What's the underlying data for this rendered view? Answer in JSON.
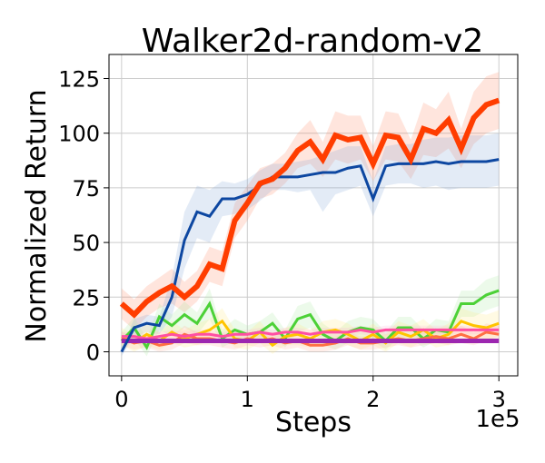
{
  "chart_data": {
    "type": "line",
    "title": "Walker2d-random-v2",
    "xlabel": "Steps",
    "ylabel": "Normalized Return",
    "x_multiplier_label": "1e5",
    "xlim": [
      -0.1,
      3.15
    ],
    "ylim": [
      -11,
      136
    ],
    "x_ticks": [
      0,
      1,
      2,
      3
    ],
    "x_tick_labels": [
      "0",
      "1",
      "2",
      "3"
    ],
    "y_ticks": [
      0,
      25,
      50,
      75,
      100,
      125
    ],
    "y_tick_labels": [
      "0",
      "25",
      "50",
      "75",
      "100",
      "125"
    ],
    "grid": true,
    "legend": "none",
    "x": [
      0,
      0.1,
      0.2,
      0.3,
      0.4,
      0.5,
      0.6,
      0.7,
      0.8,
      0.9,
      1.0,
      1.1,
      1.2,
      1.3,
      1.4,
      1.5,
      1.6,
      1.7,
      1.8,
      1.9,
      2.0,
      2.1,
      2.2,
      2.3,
      2.4,
      2.5,
      2.6,
      2.7,
      2.8,
      2.9,
      3.0
    ],
    "series": [
      {
        "color": "#ff3d00",
        "width": 6,
        "band_color": "#ff8a65",
        "values": [
          22,
          17,
          23,
          27,
          30,
          25,
          30,
          40,
          38,
          60,
          68,
          77,
          79,
          84,
          92,
          96,
          88,
          99,
          97,
          98,
          86,
          99,
          98,
          88,
          102,
          100,
          106,
          93,
          107,
          113,
          115
        ],
        "lower": [
          15,
          10,
          16,
          20,
          22,
          18,
          23,
          32,
          30,
          52,
          60,
          70,
          72,
          77,
          84,
          86,
          80,
          88,
          86,
          88,
          78,
          88,
          87,
          79,
          90,
          89,
          93,
          84,
          95,
          100,
          102
        ],
        "upper": [
          29,
          24,
          30,
          34,
          38,
          32,
          37,
          48,
          46,
          68,
          76,
          84,
          86,
          91,
          100,
          106,
          96,
          110,
          108,
          108,
          94,
          110,
          109,
          97,
          114,
          111,
          119,
          102,
          119,
          126,
          128
        ]
      },
      {
        "color": "#0d47a1",
        "width": 3,
        "band_color": "#7fa3d8",
        "values": [
          0,
          11,
          13,
          12,
          25,
          51,
          64,
          62,
          70,
          70,
          72,
          76,
          80,
          80,
          80,
          81,
          82,
          82,
          84,
          85,
          70,
          85,
          86,
          86,
          86,
          87,
          86,
          87,
          87,
          87,
          88
        ],
        "lower": [
          -2,
          7,
          9,
          8,
          16,
          38,
          52,
          50,
          62,
          63,
          65,
          69,
          74,
          74,
          73,
          74,
          64,
          72,
          74,
          76,
          62,
          76,
          77,
          77,
          75,
          76,
          74,
          75,
          75,
          75,
          76
        ],
        "upper": [
          2,
          15,
          17,
          16,
          34,
          64,
          76,
          74,
          78,
          77,
          79,
          83,
          86,
          86,
          87,
          88,
          90,
          92,
          94,
          94,
          78,
          94,
          95,
          95,
          97,
          98,
          98,
          99,
          99,
          99,
          100
        ]
      },
      {
        "color": "#4cd137",
        "width": 3,
        "band_color": "#a8e6a0",
        "values": [
          5,
          11,
          2,
          16,
          12,
          17,
          13,
          22,
          6,
          10,
          8,
          9,
          13,
          6,
          15,
          17,
          8,
          5,
          9,
          11,
          10,
          5,
          11,
          11,
          6,
          10,
          9,
          22,
          22,
          26,
          28
        ],
        "lower": [
          1,
          6,
          -2,
          10,
          7,
          11,
          8,
          15,
          2,
          5,
          4,
          4,
          8,
          2,
          9,
          11,
          3,
          1,
          4,
          6,
          5,
          1,
          6,
          6,
          2,
          5,
          4,
          16,
          16,
          19,
          21
        ],
        "upper": [
          9,
          16,
          6,
          22,
          17,
          23,
          18,
          29,
          10,
          15,
          12,
          14,
          18,
          10,
          21,
          23,
          13,
          9,
          14,
          16,
          15,
          9,
          16,
          16,
          10,
          15,
          14,
          28,
          28,
          33,
          35
        ]
      },
      {
        "color": "#ffc400",
        "width": 3,
        "band_color": "#ffe680",
        "values": [
          7,
          4,
          8,
          5,
          9,
          6,
          8,
          10,
          14,
          6,
          5,
          9,
          3,
          7,
          8,
          6,
          9,
          10,
          8,
          5,
          8,
          4,
          9,
          7,
          10,
          6,
          8,
          14,
          12,
          11,
          13
        ],
        "lower": [
          3,
          0,
          3,
          1,
          4,
          2,
          3,
          5,
          8,
          2,
          1,
          4,
          -1,
          3,
          3,
          2,
          4,
          5,
          3,
          1,
          3,
          0,
          4,
          2,
          5,
          2,
          3,
          8,
          6,
          5,
          7
        ],
        "upper": [
          11,
          8,
          13,
          9,
          14,
          10,
          13,
          15,
          20,
          10,
          9,
          14,
          7,
          11,
          13,
          10,
          14,
          15,
          13,
          9,
          13,
          8,
          14,
          12,
          15,
          10,
          13,
          20,
          18,
          17,
          19
        ]
      },
      {
        "color": "#ff7043",
        "width": 3,
        "band_color": "#ffb199",
        "values": [
          6,
          4,
          5,
          3,
          4,
          8,
          6,
          6,
          5,
          4,
          6,
          5,
          6,
          4,
          5,
          3,
          3,
          4,
          6,
          4,
          4,
          5,
          6,
          5,
          6,
          7,
          6,
          8,
          6,
          9,
          8
        ],
        "lower": [
          3,
          1,
          2,
          0,
          1,
          4,
          3,
          3,
          2,
          1,
          3,
          2,
          3,
          1,
          2,
          0,
          0,
          1,
          3,
          1,
          1,
          2,
          3,
          2,
          3,
          4,
          3,
          4,
          3,
          5,
          4
        ],
        "upper": [
          9,
          7,
          8,
          6,
          7,
          12,
          9,
          9,
          8,
          7,
          9,
          8,
          9,
          7,
          8,
          6,
          6,
          7,
          9,
          7,
          7,
          8,
          9,
          8,
          9,
          10,
          9,
          12,
          9,
          13,
          12
        ]
      },
      {
        "color": "#ff4fa3",
        "width": 3,
        "band_color": "#ffb3d6",
        "values": [
          7,
          7,
          6,
          7,
          8,
          7,
          8,
          8,
          7,
          8,
          8,
          9,
          8,
          9,
          9,
          8,
          9,
          9,
          9,
          10,
          9,
          10,
          10,
          10,
          10,
          10,
          10,
          10,
          10,
          10,
          10
        ],
        "lower": [
          5,
          5,
          4,
          5,
          6,
          5,
          6,
          6,
          5,
          6,
          6,
          7,
          6,
          7,
          7,
          6,
          7,
          7,
          7,
          8,
          7,
          8,
          8,
          8,
          8,
          8,
          8,
          8,
          8,
          8,
          8
        ],
        "upper": [
          9,
          9,
          8,
          9,
          10,
          9,
          10,
          10,
          9,
          10,
          10,
          11,
          10,
          11,
          11,
          10,
          11,
          11,
          11,
          12,
          11,
          12,
          12,
          12,
          12,
          12,
          12,
          12,
          12,
          12,
          12
        ]
      },
      {
        "color": "#9c27b0",
        "width": 5,
        "band_color": "#d1a3dd",
        "values": [
          5,
          5,
          5,
          5,
          5,
          5,
          5,
          5,
          5,
          5,
          5,
          5,
          5,
          5,
          5,
          5,
          5,
          5,
          5,
          5,
          5,
          5,
          5,
          5,
          5,
          5,
          5,
          5,
          5,
          5,
          5
        ],
        "lower": [
          4,
          4,
          4,
          4,
          4,
          4,
          4,
          4,
          4,
          4,
          4,
          4,
          4,
          4,
          4,
          4,
          4,
          4,
          4,
          4,
          4,
          4,
          4,
          4,
          4,
          4,
          4,
          4,
          4,
          4,
          4
        ],
        "upper": [
          6,
          6,
          6,
          6,
          6,
          6,
          6,
          6,
          6,
          6,
          6,
          6,
          6,
          6,
          6,
          6,
          6,
          6,
          6,
          6,
          6,
          6,
          6,
          6,
          6,
          6,
          6,
          6,
          6,
          6,
          6
        ]
      }
    ]
  }
}
